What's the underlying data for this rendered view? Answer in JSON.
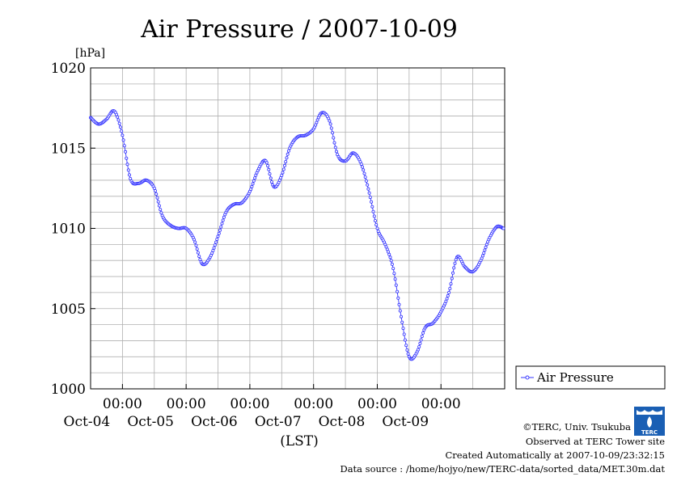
{
  "chart_data": {
    "type": "line",
    "title": "Air Pressure / 2007-10-09",
    "ylabel": "[hPa]",
    "xlabel": "(LST)",
    "ylim": [
      1000,
      1020
    ],
    "yticks": [
      1000,
      1005,
      1010,
      1015,
      1020
    ],
    "x_start": "2007-10-03 12:00",
    "x_end": "2007-10-10 00:00",
    "x_ticks": [
      {
        "time": "2007-10-04 00:00",
        "time_label": "00:00",
        "date_label": "Oct-04"
      },
      {
        "time": "2007-10-05 00:00",
        "time_label": "00:00",
        "date_label": "Oct-05"
      },
      {
        "time": "2007-10-06 00:00",
        "time_label": "00:00",
        "date_label": "Oct-06"
      },
      {
        "time": "2007-10-07 00:00",
        "time_label": "00:00",
        "date_label": "Oct-07"
      },
      {
        "time": "2007-10-08 00:00",
        "time_label": "00:00",
        "date_label": "Oct-08"
      },
      {
        "time": "2007-10-09 00:00",
        "time_label": "00:00",
        "date_label": "Oct-09"
      }
    ],
    "grid": true,
    "legend_position": "right",
    "series": [
      {
        "name": "Air Pressure",
        "color": "#3333ff",
        "points": [
          [
            "2007-10-03 12:00",
            1016.9
          ],
          [
            "2007-10-03 15:00",
            1016.5
          ],
          [
            "2007-10-03 18:00",
            1016.8
          ],
          [
            "2007-10-03 21:00",
            1017.3
          ],
          [
            "2007-10-04 00:00",
            1015.8
          ],
          [
            "2007-10-04 03:00",
            1013.1
          ],
          [
            "2007-10-04 06:00",
            1012.8
          ],
          [
            "2007-10-04 09:00",
            1013.0
          ],
          [
            "2007-10-04 12:00",
            1012.5
          ],
          [
            "2007-10-04 15:00",
            1010.8
          ],
          [
            "2007-10-04 18:00",
            1010.2
          ],
          [
            "2007-10-04 21:00",
            1010.0
          ],
          [
            "2007-10-05 00:00",
            1010.0
          ],
          [
            "2007-10-05 03:00",
            1009.3
          ],
          [
            "2007-10-05 06:00",
            1007.8
          ],
          [
            "2007-10-05 09:00",
            1008.2
          ],
          [
            "2007-10-05 12:00",
            1009.5
          ],
          [
            "2007-10-05 15:00",
            1011.0
          ],
          [
            "2007-10-05 18:00",
            1011.5
          ],
          [
            "2007-10-05 21:00",
            1011.6
          ],
          [
            "2007-10-06 00:00",
            1012.3
          ],
          [
            "2007-10-06 03:00",
            1013.6
          ],
          [
            "2007-10-06 06:00",
            1014.2
          ],
          [
            "2007-10-06 09:00",
            1012.6
          ],
          [
            "2007-10-06 12:00",
            1013.3
          ],
          [
            "2007-10-06 15:00",
            1015.0
          ],
          [
            "2007-10-06 18:00",
            1015.7
          ],
          [
            "2007-10-06 21:00",
            1015.8
          ],
          [
            "2007-10-07 00:00",
            1016.2
          ],
          [
            "2007-10-07 03:00",
            1017.2
          ],
          [
            "2007-10-07 06:00",
            1016.7
          ],
          [
            "2007-10-07 09:00",
            1014.6
          ],
          [
            "2007-10-07 12:00",
            1014.2
          ],
          [
            "2007-10-07 15:00",
            1014.7
          ],
          [
            "2007-10-07 18:00",
            1014.0
          ],
          [
            "2007-10-07 21:00",
            1012.2
          ],
          [
            "2007-10-08 00:00",
            1010.0
          ],
          [
            "2007-10-08 03:00",
            1009.0
          ],
          [
            "2007-10-08 06:00",
            1007.5
          ],
          [
            "2007-10-08 09:00",
            1004.5
          ],
          [
            "2007-10-08 12:00",
            1002.0
          ],
          [
            "2007-10-08 15:00",
            1002.3
          ],
          [
            "2007-10-08 18:00",
            1003.8
          ],
          [
            "2007-10-08 21:00",
            1004.1
          ],
          [
            "2007-10-09 00:00",
            1004.8
          ],
          [
            "2007-10-09 03:00",
            1006.0
          ],
          [
            "2007-10-09 06:00",
            1008.2
          ],
          [
            "2007-10-09 09:00",
            1007.6
          ],
          [
            "2007-10-09 12:00",
            1007.3
          ],
          [
            "2007-10-09 15:00",
            1008.0
          ],
          [
            "2007-10-09 18:00",
            1009.3
          ],
          [
            "2007-10-09 21:00",
            1010.1
          ],
          [
            "2007-10-09 23:30",
            1010.0
          ]
        ]
      }
    ]
  },
  "footer": {
    "copyright": "©TERC, Univ. Tsukuba",
    "observed": "Observed at TERC Tower site",
    "created": "Created Automatically at 2007-10-09/23:32:15",
    "source": "Data source : /home/hojyo/new/TERC-data/sorted_data/MET.30m.dat"
  },
  "logo": {
    "icon": "terc-logo-icon",
    "text": "TERC",
    "color": "#1a5fb4"
  }
}
